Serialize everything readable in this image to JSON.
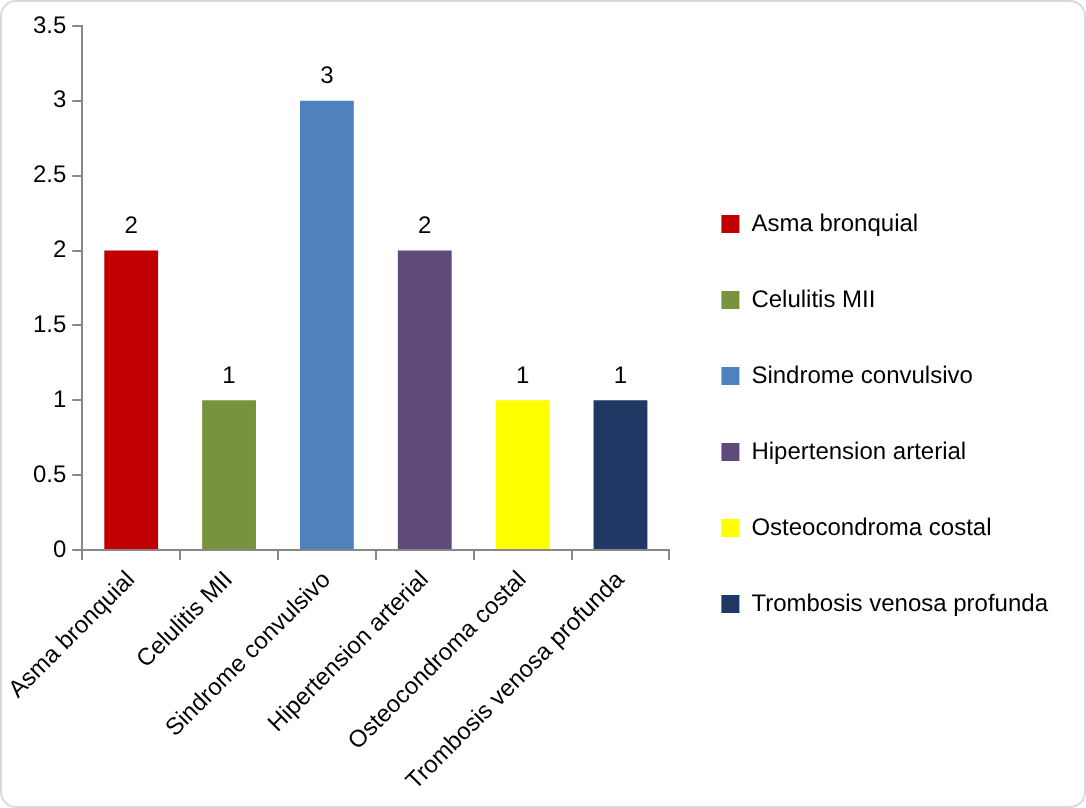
{
  "chart_data": {
    "type": "bar",
    "categories": [
      "Asma bronquial",
      "Celulitis MII",
      "Sindrome convulsivo",
      "Hipertension arterial",
      "Osteocondroma costal",
      "Trombosis venosa profunda"
    ],
    "series": [
      {
        "name": "Asma bronquial",
        "color": "#c00000",
        "values": [
          2,
          null,
          null,
          null,
          null,
          null
        ]
      },
      {
        "name": "Celulitis MII",
        "color": "#77933c",
        "values": [
          null,
          1,
          null,
          null,
          null,
          null
        ]
      },
      {
        "name": "Sindrome convulsivo",
        "color": "#4f81bd",
        "values": [
          null,
          null,
          3,
          null,
          null,
          null
        ]
      },
      {
        "name": "Hipertension arterial",
        "color": "#604a7b",
        "values": [
          null,
          null,
          null,
          2,
          null,
          null
        ]
      },
      {
        "name": "Osteocondroma costal",
        "color": "#ffff00",
        "values": [
          null,
          null,
          null,
          null,
          1,
          null
        ]
      },
      {
        "name": "Trombosis venosa profunda",
        "color": "#1f3864",
        "values": [
          null,
          null,
          null,
          null,
          null,
          1
        ]
      }
    ],
    "ylim": [
      0,
      3.5
    ],
    "yticks": [
      0,
      {
        "value": 0.5,
        "label": "0.5"
      },
      1,
      {
        "value": 1.5,
        "label": "1.5"
      },
      2,
      {
        "value": 2.5,
        "label": "2.5"
      },
      3,
      {
        "value": 3.5,
        "label": "3.5"
      }
    ],
    "grid": false,
    "legend": "right",
    "data_labels": true
  }
}
